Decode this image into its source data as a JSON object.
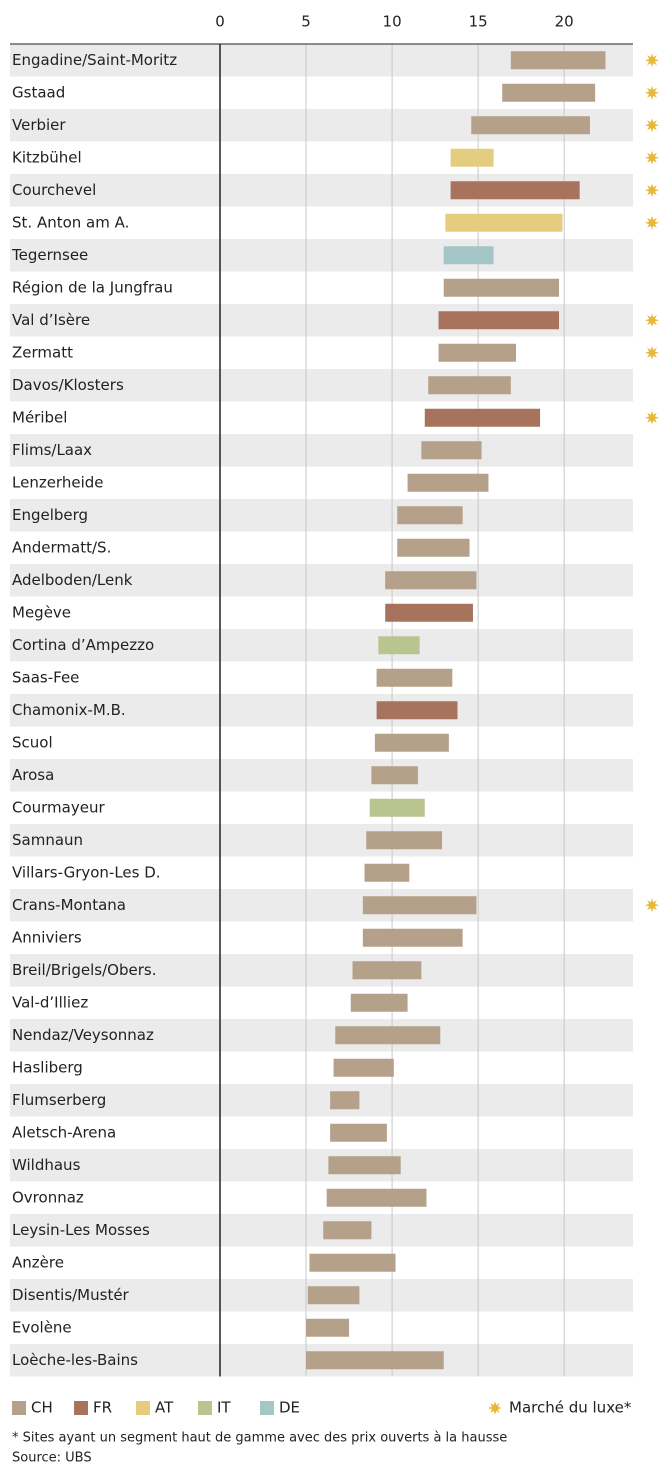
{
  "chart_data": {
    "type": "range-bar",
    "categories": [
      "Engadine/Saint-Moritz",
      "Gstaad",
      "Verbier",
      "Kitzbühel",
      "Courchevel",
      "St. Anton am A.",
      "Tegernsee",
      "Région de la Jungfrau",
      "Val d’Isère",
      "Zermatt",
      "Davos/Klosters",
      "Méribel",
      "Flims/Laax",
      "Lenzerheide",
      "Engelberg",
      "Andermatt/S.",
      "Adelboden/Lenk",
      "Megève",
      "Cortina d’Ampezzo",
      "Saas-Fee",
      "Chamonix-M.B.",
      "Scuol",
      "Arosa",
      "Courmayeur",
      "Samnaun",
      "Villars-Gryon-Les D.",
      "Crans-Montana",
      "Anniviers",
      "Breil/Brigels/Obers.",
      "Val-d’Illiez",
      "Nendaz/Veysonnaz",
      "Hasliberg",
      "Flumserberg",
      "Aletsch-Arena",
      "Wildhaus",
      "Ovronnaz",
      "Leysin-Les Mosses",
      "Anzère",
      "Disentis/Mustér",
      "Evolène",
      "Loèche-les-Bains"
    ],
    "low": [
      16.9,
      16.4,
      14.6,
      13.4,
      13.4,
      13.1,
      13.0,
      13.0,
      12.7,
      12.7,
      12.1,
      11.9,
      11.7,
      10.9,
      10.3,
      10.3,
      9.6,
      9.6,
      9.2,
      9.1,
      9.1,
      9.0,
      8.8,
      8.7,
      8.5,
      8.4,
      8.3,
      8.3,
      7.7,
      7.6,
      6.7,
      6.6,
      6.4,
      6.4,
      6.3,
      6.2,
      6.0,
      5.2,
      5.1,
      5.0,
      5.0
    ],
    "high": [
      22.4,
      21.8,
      21.5,
      15.9,
      20.9,
      19.9,
      15.9,
      19.7,
      19.7,
      17.2,
      16.9,
      18.6,
      15.2,
      15.6,
      14.1,
      14.5,
      14.9,
      14.7,
      11.6,
      13.5,
      13.8,
      13.3,
      11.5,
      11.9,
      12.9,
      11.0,
      14.9,
      14.1,
      11.7,
      10.9,
      12.8,
      10.1,
      8.1,
      9.7,
      10.5,
      12.0,
      8.8,
      10.2,
      8.1,
      7.5,
      13.0
    ],
    "country": [
      0,
      0,
      0,
      2,
      1,
      2,
      4,
      0,
      1,
      0,
      0,
      1,
      0,
      0,
      0,
      0,
      0,
      1,
      3,
      0,
      1,
      0,
      0,
      3,
      0,
      0,
      0,
      0,
      0,
      0,
      0,
      0,
      0,
      0,
      0,
      0,
      0,
      0,
      0,
      0,
      0
    ],
    "luxury": [
      true,
      true,
      true,
      true,
      true,
      true,
      false,
      false,
      true,
      true,
      false,
      true,
      false,
      false,
      false,
      false,
      false,
      false,
      false,
      false,
      false,
      false,
      false,
      false,
      false,
      false,
      true,
      false,
      false,
      false,
      false,
      false,
      false,
      false,
      false,
      false,
      false,
      false,
      false,
      false,
      false
    ],
    "countries": [
      {
        "name": "CH",
        "color": "#b5a08a"
      },
      {
        "name": "FR",
        "color": "#a8735d"
      },
      {
        "name": "AT",
        "color": "#e5cd80"
      },
      {
        "name": "IT",
        "color": "#b9c48f"
      },
      {
        "name": "DE",
        "color": "#a4c6c6"
      }
    ],
    "luxury_label": "Marché du luxe*",
    "luxury_color": "#e8b83a",
    "xlim": [
      0,
      24
    ],
    "xticks": [
      0,
      5,
      10,
      15,
      20
    ],
    "grid": true,
    "footnote": "* Sites ayant un segment haut de gamme avec des prix ouverts à la hausse",
    "source": "Source: UBS"
  }
}
